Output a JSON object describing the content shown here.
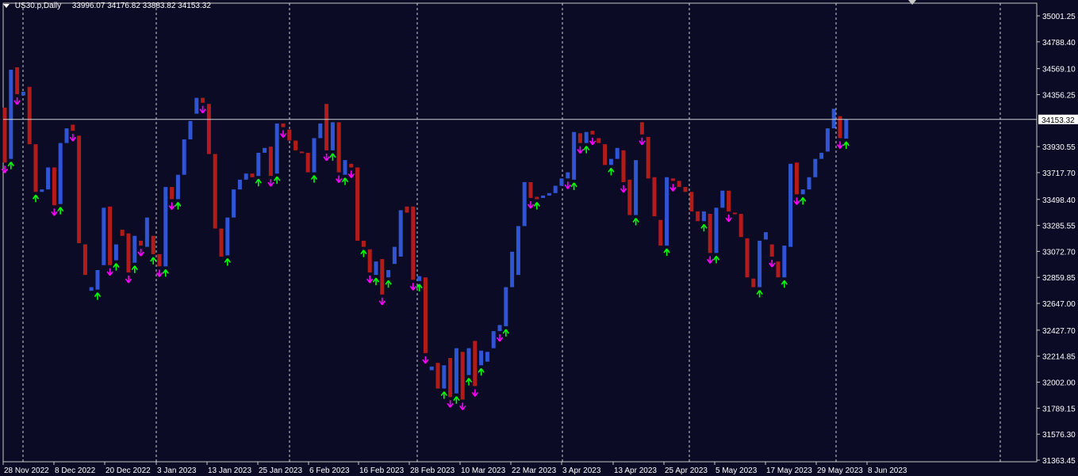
{
  "header": {
    "symbol": "US30.p,Daily",
    "ohlc": "33996.07 34176.82 33883.82 34153.32"
  },
  "current_price_label": "34153.32",
  "colors": {
    "background": "#0b0b26",
    "bull": "#2f55d4",
    "bear": "#b31b1b",
    "up_arrow": "#00ff00",
    "down_arrow": "#ff00ff",
    "grid": "#ffffff",
    "text": "#ffffff"
  },
  "chart_data": {
    "type": "bar",
    "style": "candlestick-blocks (open/close only)",
    "symbol": "US30.p",
    "timeframe": "Daily",
    "y_ticks": [
      "35001.25",
      "34788.40",
      "34569.10",
      "34356.25",
      "34153.32",
      "33930.55",
      "33717.70",
      "33498.40",
      "33285.55",
      "33072.70",
      "32859.85",
      "32647.00",
      "32427.70",
      "32214.85",
      "32002.00",
      "31789.15",
      "31576.30",
      "31363.45"
    ],
    "x_ticks": [
      "28 Nov 2022",
      "8 Dec 2022",
      "20 Dec 2022",
      "3 Jan 2023",
      "13 Jan 2023",
      "25 Jan 2023",
      "6 Feb 2023",
      "16 Feb 2023",
      "28 Feb 2023",
      "10 Mar 2023",
      "22 Mar 2023",
      "3 Apr 2023",
      "13 Apr 2023",
      "25 Apr 2023",
      "5 May 2023",
      "17 May 2023",
      "29 May 2023",
      "8 Jun 2023"
    ],
    "ylim": [
      31363.45,
      35001.25
    ],
    "grid": "vertical dashed",
    "current_price": 34153.32,
    "bars": [
      {
        "o": 34250,
        "c": 33800,
        "sig": "down"
      },
      {
        "o": 33830,
        "c": 34560,
        "sig": "up"
      },
      {
        "o": 34580,
        "c": 34360,
        "sig": "down"
      },
      {
        "o": 34350,
        "c": 34380,
        "sig": ""
      },
      {
        "o": 34420,
        "c": 33950,
        "sig": ""
      },
      {
        "o": 33950,
        "c": 33560,
        "sig": "up"
      },
      {
        "o": 33560,
        "c": 33580,
        "sig": ""
      },
      {
        "o": 33580,
        "c": 33760,
        "sig": ""
      },
      {
        "o": 33760,
        "c": 33450,
        "sig": "down"
      },
      {
        "o": 33460,
        "c": 33960,
        "sig": "up"
      },
      {
        "o": 33960,
        "c": 34080,
        "sig": ""
      },
      {
        "o": 34110,
        "c": 34060,
        "sig": "down"
      },
      {
        "o": 34020,
        "c": 33140,
        "sig": ""
      },
      {
        "o": 33130,
        "c": 32880,
        "sig": ""
      },
      {
        "o": 32750,
        "c": 32780,
        "sig": ""
      },
      {
        "o": 32760,
        "c": 32920,
        "sig": "up"
      },
      {
        "o": 32960,
        "c": 33430,
        "sig": ""
      },
      {
        "o": 33440,
        "c": 32960,
        "sig": "down"
      },
      {
        "o": 33000,
        "c": 33130,
        "sig": "up"
      },
      {
        "o": 33250,
        "c": 33200,
        "sig": ""
      },
      {
        "o": 33220,
        "c": 32900,
        "sig": "down"
      },
      {
        "o": 32980,
        "c": 33200,
        "sig": "up"
      },
      {
        "o": 33160,
        "c": 33120,
        "sig": "down"
      },
      {
        "o": 33110,
        "c": 33350,
        "sig": ""
      },
      {
        "o": 33200,
        "c": 33050,
        "sig": "up"
      },
      {
        "o": 33050,
        "c": 32950,
        "sig": "down"
      },
      {
        "o": 32950,
        "c": 33600,
        "sig": "up"
      },
      {
        "o": 33600,
        "c": 33500,
        "sig": "down"
      },
      {
        "o": 33500,
        "c": 33700,
        "sig": "up"
      },
      {
        "o": 33700,
        "c": 33990,
        "sig": ""
      },
      {
        "o": 33990,
        "c": 34140,
        "sig": ""
      },
      {
        "o": 34200,
        "c": 34330,
        "sig": ""
      },
      {
        "o": 34330,
        "c": 34290,
        "sig": "down"
      },
      {
        "o": 34280,
        "c": 33870,
        "sig": ""
      },
      {
        "o": 33870,
        "c": 33260,
        "sig": ""
      },
      {
        "o": 33260,
        "c": 33030,
        "sig": ""
      },
      {
        "o": 33040,
        "c": 33350,
        "sig": "up"
      },
      {
        "o": 33350,
        "c": 33580,
        "sig": ""
      },
      {
        "o": 33580,
        "c": 33660,
        "sig": ""
      },
      {
        "o": 33660,
        "c": 33710,
        "sig": ""
      },
      {
        "o": 33710,
        "c": 33680,
        "sig": ""
      },
      {
        "o": 33690,
        "c": 33880,
        "sig": "up"
      },
      {
        "o": 33880,
        "c": 33920,
        "sig": ""
      },
      {
        "o": 33930,
        "c": 33690,
        "sig": "down"
      },
      {
        "o": 33710,
        "c": 34120,
        "sig": "up"
      },
      {
        "o": 34120,
        "c": 34090,
        "sig": "down"
      },
      {
        "o": 34070,
        "c": 33980,
        "sig": ""
      },
      {
        "o": 33980,
        "c": 33900,
        "sig": ""
      },
      {
        "o": 33890,
        "c": 33880,
        "sig": ""
      },
      {
        "o": 33880,
        "c": 33720,
        "sig": ""
      },
      {
        "o": 33720,
        "c": 34000,
        "sig": "up"
      },
      {
        "o": 34000,
        "c": 34120,
        "sig": ""
      },
      {
        "o": 34280,
        "c": 33900,
        "sig": "down"
      },
      {
        "o": 33900,
        "c": 34130,
        "sig": "up"
      },
      {
        "o": 34130,
        "c": 33720,
        "sig": "down"
      },
      {
        "o": 33700,
        "c": 33820,
        "sig": "up"
      },
      {
        "o": 33790,
        "c": 33760,
        "sig": "down"
      },
      {
        "o": 33760,
        "c": 33160,
        "sig": ""
      },
      {
        "o": 33160,
        "c": 33110,
        "sig": "up"
      },
      {
        "o": 33090,
        "c": 32900,
        "sig": "down"
      },
      {
        "o": 32880,
        "c": 32990,
        "sig": "up"
      },
      {
        "o": 33010,
        "c": 32720,
        "sig": "down"
      },
      {
        "o": 32860,
        "c": 32920,
        "sig": "up"
      },
      {
        "o": 32970,
        "c": 33110,
        "sig": ""
      },
      {
        "o": 33030,
        "c": 33410,
        "sig": ""
      },
      {
        "o": 33440,
        "c": 33390,
        "sig": ""
      },
      {
        "o": 33440,
        "c": 32840,
        "sig": "down"
      },
      {
        "o": 32830,
        "c": 32870,
        "sig": "up"
      },
      {
        "o": 32860,
        "c": 32240,
        "sig": "down"
      },
      {
        "o": 32100,
        "c": 32130,
        "sig": ""
      },
      {
        "o": 32160,
        "c": 31950,
        "sig": ""
      },
      {
        "o": 31950,
        "c": 32140,
        "sig": "up"
      },
      {
        "o": 32200,
        "c": 31880,
        "sig": "down"
      },
      {
        "o": 31910,
        "c": 32280,
        "sig": "up"
      },
      {
        "o": 32250,
        "c": 31860,
        "sig": "down"
      },
      {
        "o": 32060,
        "c": 32280,
        "sig": "up"
      },
      {
        "o": 32340,
        "c": 31970,
        "sig": "down"
      },
      {
        "o": 32140,
        "c": 32260,
        "sig": "up"
      },
      {
        "o": 32170,
        "c": 32250,
        "sig": ""
      },
      {
        "o": 32280,
        "c": 32420,
        "sig": ""
      },
      {
        "o": 32420,
        "c": 32470,
        "sig": "down"
      },
      {
        "o": 32460,
        "c": 32780,
        "sig": "up"
      },
      {
        "o": 32780,
        "c": 33070,
        "sig": ""
      },
      {
        "o": 32880,
        "c": 33280,
        "sig": ""
      },
      {
        "o": 33280,
        "c": 33640,
        "sig": ""
      },
      {
        "o": 33640,
        "c": 33510,
        "sig": "down"
      },
      {
        "o": 33520,
        "c": 33500,
        "sig": "up"
      },
      {
        "o": 33510,
        "c": 33530,
        "sig": ""
      },
      {
        "o": 33530,
        "c": 33550,
        "sig": ""
      },
      {
        "o": 33550,
        "c": 33610,
        "sig": ""
      },
      {
        "o": 33610,
        "c": 33670,
        "sig": ""
      },
      {
        "o": 33670,
        "c": 33720,
        "sig": "down"
      },
      {
        "o": 33660,
        "c": 34050,
        "sig": "up"
      },
      {
        "o": 34040,
        "c": 33960,
        "sig": "down"
      },
      {
        "o": 33960,
        "c": 34050,
        "sig": "up"
      },
      {
        "o": 34060,
        "c": 34030,
        "sig": "down"
      },
      {
        "o": 34000,
        "c": 33960,
        "sig": ""
      },
      {
        "o": 33950,
        "c": 33780,
        "sig": ""
      },
      {
        "o": 33780,
        "c": 33830,
        "sig": "up"
      },
      {
        "o": 33830,
        "c": 33920,
        "sig": ""
      },
      {
        "o": 33900,
        "c": 33640,
        "sig": "down"
      },
      {
        "o": 33660,
        "c": 33370,
        "sig": ""
      },
      {
        "o": 33370,
        "c": 33820,
        "sig": "up"
      },
      {
        "o": 34130,
        "c": 34030,
        "sig": "down"
      },
      {
        "o": 34010,
        "c": 33670,
        "sig": ""
      },
      {
        "o": 33680,
        "c": 33360,
        "sig": ""
      },
      {
        "o": 33330,
        "c": 33120,
        "sig": ""
      },
      {
        "o": 33120,
        "c": 33680,
        "sig": "up"
      },
      {
        "o": 33670,
        "c": 33650,
        "sig": "down"
      },
      {
        "o": 33650,
        "c": 33600,
        "sig": ""
      },
      {
        "o": 33600,
        "c": 33560,
        "sig": ""
      },
      {
        "o": 33560,
        "c": 33400,
        "sig": ""
      },
      {
        "o": 33400,
        "c": 33320,
        "sig": ""
      },
      {
        "o": 33320,
        "c": 33400,
        "sig": "up"
      },
      {
        "o": 33380,
        "c": 33060,
        "sig": "down"
      },
      {
        "o": 33060,
        "c": 33430,
        "sig": "up"
      },
      {
        "o": 33430,
        "c": 33570,
        "sig": ""
      },
      {
        "o": 33570,
        "c": 33400,
        "sig": "down"
      },
      {
        "o": 33390,
        "c": 33380,
        "sig": ""
      },
      {
        "o": 33380,
        "c": 33190,
        "sig": ""
      },
      {
        "o": 33180,
        "c": 32860,
        "sig": ""
      },
      {
        "o": 32850,
        "c": 32780,
        "sig": ""
      },
      {
        "o": 32780,
        "c": 33160,
        "sig": "up"
      },
      {
        "o": 33170,
        "c": 33230,
        "sig": ""
      },
      {
        "o": 33130,
        "c": 33030,
        "sig": "down"
      },
      {
        "o": 32990,
        "c": 32860,
        "sig": ""
      },
      {
        "o": 32860,
        "c": 33120,
        "sig": "up"
      },
      {
        "o": 33110,
        "c": 33790,
        "sig": ""
      },
      {
        "o": 33800,
        "c": 33540,
        "sig": "down"
      },
      {
        "o": 33540,
        "c": 33580,
        "sig": "up"
      },
      {
        "o": 33580,
        "c": 33680,
        "sig": ""
      },
      {
        "o": 33680,
        "c": 33830,
        "sig": ""
      },
      {
        "o": 33830,
        "c": 33880,
        "sig": ""
      },
      {
        "o": 33890,
        "c": 34080,
        "sig": ""
      },
      {
        "o": 34080,
        "c": 34240,
        "sig": ""
      },
      {
        "o": 34180,
        "c": 34000,
        "sig": "down"
      },
      {
        "o": 33996.07,
        "c": 34153.32,
        "sig": "up"
      }
    ]
  }
}
